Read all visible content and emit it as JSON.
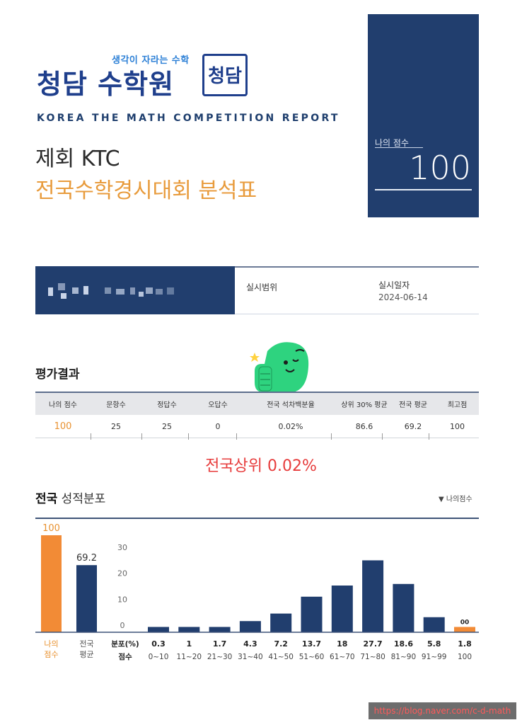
{
  "logo": {
    "tagline": "생각이 자라는 수학",
    "name": "청담 수학원",
    "seal_text": "청담"
  },
  "report_title": "KOREA THE MATH COMPETITION REPORT",
  "exam": {
    "line1": "제회 KTC",
    "line2": "전국수학경시대회 분석표"
  },
  "score_box": {
    "label": "나의 점수",
    "value": "100"
  },
  "info": {
    "range_label": "실시범위",
    "range_value": "",
    "date_label": "실시일자",
    "date_value": "2024-06-14"
  },
  "results": {
    "section_title": "평가결과",
    "headers": [
      "나의 점수",
      "문항수",
      "정답수",
      "오답수",
      "전국 석차백분율",
      "상위 30% 평균",
      "전국 평균",
      "최고점"
    ],
    "values": [
      "100",
      "25",
      "25",
      "0",
      "0.02%",
      "86.6",
      "69.2",
      "100"
    ]
  },
  "rank_text": "전국상위 0.02%",
  "distribution": {
    "title_bold": "전국",
    "title_rest": " 성적분포",
    "legend": "▼ 나의점수"
  },
  "chart_data": [
    {
      "type": "bar",
      "categories": [
        "나의 점수",
        "전국 평균"
      ],
      "values": [
        100,
        69.2
      ],
      "ylim": [
        0,
        100
      ],
      "colors": [
        "#f28b36",
        "#213e6e"
      ]
    },
    {
      "type": "bar",
      "row_label_value": "분포(%)",
      "row_label_category": "점수",
      "categories": [
        "0~10",
        "11~20",
        "21~30",
        "31~40",
        "41~50",
        "51~60",
        "61~70",
        "71~80",
        "81~90",
        "91~99",
        "100"
      ],
      "values": [
        0.3,
        1,
        1.7,
        4.3,
        7.2,
        13.7,
        18,
        27.7,
        18.6,
        5.8,
        1.8
      ],
      "y_ticks": [
        0,
        10,
        20,
        30
      ],
      "ylim": [
        0,
        30
      ],
      "highlight_index": 10,
      "highlight_marker": "00",
      "bar_color": "#213e6e",
      "highlight_color": "#f28b36"
    }
  ],
  "watermark": "https://blog.naver.com/c-d-math"
}
